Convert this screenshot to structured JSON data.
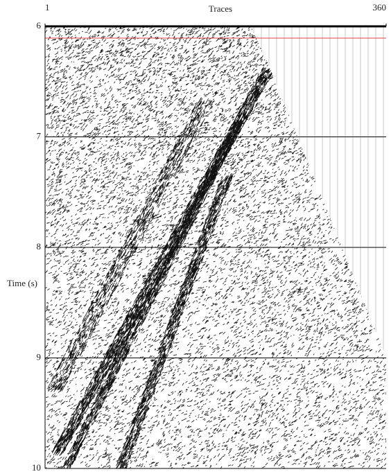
{
  "chart_data": {
    "type": "seismic",
    "title": "Traces",
    "y_label": "Time (s)",
    "xlim": [
      1,
      360
    ],
    "xticks": [
      1,
      360
    ],
    "ylim": [
      6,
      10
    ],
    "yticks": [
      6,
      7,
      8,
      9,
      10
    ],
    "y_inverted": true,
    "grid": true
  }
}
